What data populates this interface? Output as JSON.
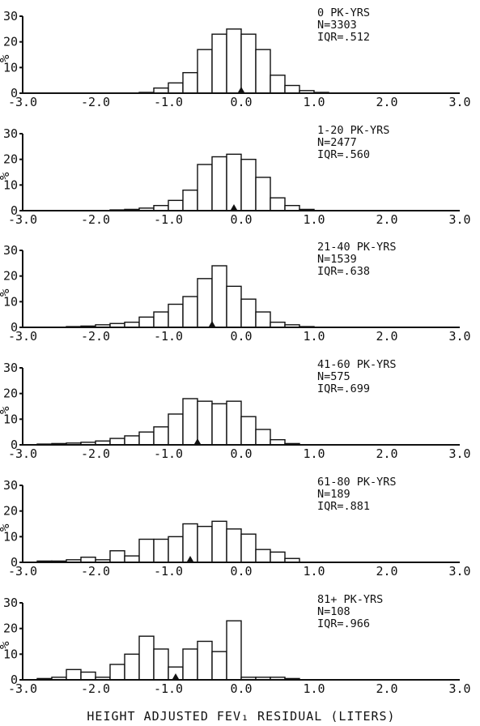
{
  "figure": {
    "xlabel": "HEIGHT ADJUSTED FEV₁ RESIDUAL (LITERS)"
  },
  "chart_data": [
    {
      "type": "bar",
      "title": "0 PK-YRS",
      "annotations": [
        "N=3303",
        "IQR=.512"
      ],
      "ylabel": "%",
      "xlim": [
        -3.0,
        3.0
      ],
      "ylim": [
        0,
        30
      ],
      "x_ticks": [
        "-3.0",
        "-2.0",
        "-1.0",
        "0.0",
        "1.0",
        "2.0",
        "3.0"
      ],
      "y_ticks": [
        "0",
        "10",
        "20",
        "30"
      ],
      "bin_width": 0.2,
      "bin_centers": [
        -1.3,
        -1.1,
        -0.9,
        -0.7,
        -0.5,
        -0.3,
        -0.1,
        0.1,
        0.3,
        0.5,
        0.7,
        0.9,
        1.1
      ],
      "values": [
        0.3,
        2,
        4,
        8,
        17,
        23,
        25,
        23,
        17,
        7,
        3,
        1,
        0.3
      ],
      "median": 0.0
    },
    {
      "type": "bar",
      "title": "1-20 PK-YRS",
      "annotations": [
        "N=2477",
        "IQR=.560"
      ],
      "ylabel": "%",
      "xlim": [
        -3.0,
        3.0
      ],
      "ylim": [
        0,
        30
      ],
      "x_ticks": [
        "-3.0",
        "-2.0",
        "-1.0",
        "0.0",
        "1.0",
        "2.0",
        "3.0"
      ],
      "y_ticks": [
        "0",
        "10",
        "20",
        "30"
      ],
      "bin_width": 0.2,
      "bin_centers": [
        -1.7,
        -1.5,
        -1.3,
        -1.1,
        -0.9,
        -0.7,
        -0.5,
        -0.3,
        -0.1,
        0.1,
        0.3,
        0.5,
        0.7,
        0.9
      ],
      "values": [
        0.3,
        0.5,
        1,
        2,
        4,
        8,
        18,
        21,
        22,
        20,
        13,
        5,
        2,
        0.5
      ],
      "median": -0.1
    },
    {
      "type": "bar",
      "title": "21-40 PK-YRS",
      "annotations": [
        "N=1539",
        "IQR=.638"
      ],
      "ylabel": "%",
      "xlim": [
        -3.0,
        3.0
      ],
      "ylim": [
        0,
        30
      ],
      "x_ticks": [
        "-3.0",
        "-2.0",
        "-1.0",
        "0.0",
        "1.0",
        "2.0",
        "3.0"
      ],
      "y_ticks": [
        "0",
        "10",
        "20",
        "30"
      ],
      "bin_width": 0.2,
      "bin_centers": [
        -2.3,
        -2.1,
        -1.9,
        -1.7,
        -1.5,
        -1.3,
        -1.1,
        -0.9,
        -0.7,
        -0.5,
        -0.3,
        -0.1,
        0.1,
        0.3,
        0.5,
        0.7,
        0.9
      ],
      "values": [
        0.3,
        0.5,
        1,
        1.5,
        2,
        4,
        6,
        9,
        12,
        19,
        24,
        16,
        11,
        6,
        2,
        1,
        0.3
      ],
      "median": -0.4
    },
    {
      "type": "bar",
      "title": "41-60 PK-YRS",
      "annotations": [
        "N=575",
        "IQR=.699"
      ],
      "ylabel": "%",
      "xlim": [
        -3.0,
        3.0
      ],
      "ylim": [
        0,
        30
      ],
      "x_ticks": [
        "-3.0",
        "-2.0",
        "-1.0",
        "0.0",
        "1.0",
        "2.0",
        "3.0"
      ],
      "y_ticks": [
        "0",
        "10",
        "20",
        "30"
      ],
      "bin_width": 0.2,
      "bin_centers": [
        -2.7,
        -2.5,
        -2.3,
        -2.1,
        -1.9,
        -1.7,
        -1.5,
        -1.3,
        -1.1,
        -0.9,
        -0.7,
        -0.5,
        -0.3,
        -0.1,
        0.1,
        0.3,
        0.5,
        0.7
      ],
      "values": [
        0.3,
        0.5,
        0.7,
        1,
        1.5,
        2.5,
        3.5,
        5,
        7,
        12,
        18,
        17,
        16,
        17,
        11,
        6,
        2,
        0.5
      ],
      "median": -0.6
    },
    {
      "type": "bar",
      "title": "61-80 PK-YRS",
      "annotations": [
        "N=189",
        "IQR=.881"
      ],
      "ylabel": "%",
      "xlim": [
        -3.0,
        3.0
      ],
      "ylim": [
        0,
        30
      ],
      "x_ticks": [
        "-3.0",
        "-2.0",
        "-1.0",
        "0.0",
        "1.0",
        "2.0",
        "3.0"
      ],
      "y_ticks": [
        "0",
        "10",
        "20",
        "30"
      ],
      "bin_width": 0.2,
      "bin_centers": [
        -2.7,
        -2.5,
        -2.3,
        -2.1,
        -1.9,
        -1.7,
        -1.5,
        -1.3,
        -1.1,
        -0.9,
        -0.7,
        -0.5,
        -0.3,
        -0.1,
        0.1,
        0.3,
        0.5,
        0.7
      ],
      "values": [
        0.5,
        0.5,
        1,
        2,
        1,
        4.5,
        2.5,
        9,
        9,
        10,
        15,
        14,
        16,
        13,
        11,
        5,
        4,
        1.5
      ],
      "median": -0.7
    },
    {
      "type": "bar",
      "title": "81+ PK-YRS",
      "annotations": [
        "N=108",
        "IQR=.966"
      ],
      "ylabel": "%",
      "xlim": [
        -3.0,
        3.0
      ],
      "ylim": [
        0,
        30
      ],
      "x_ticks": [
        "-3.0",
        "-2.0",
        "-1.0",
        "0.0",
        "1.0",
        "2.0",
        "3.0"
      ],
      "y_ticks": [
        "0",
        "10",
        "20",
        "30"
      ],
      "bin_width": 0.2,
      "bin_centers": [
        -2.7,
        -2.5,
        -2.3,
        -2.1,
        -1.9,
        -1.7,
        -1.5,
        -1.3,
        -1.1,
        -0.9,
        -0.7,
        -0.5,
        -0.3,
        -0.1,
        0.1,
        0.3,
        0.5,
        0.7
      ],
      "values": [
        0.5,
        1,
        4,
        3,
        1,
        6,
        10,
        17,
        12,
        5,
        12,
        15,
        11,
        23,
        1,
        1,
        1,
        0.5
      ],
      "median": -0.9
    }
  ]
}
